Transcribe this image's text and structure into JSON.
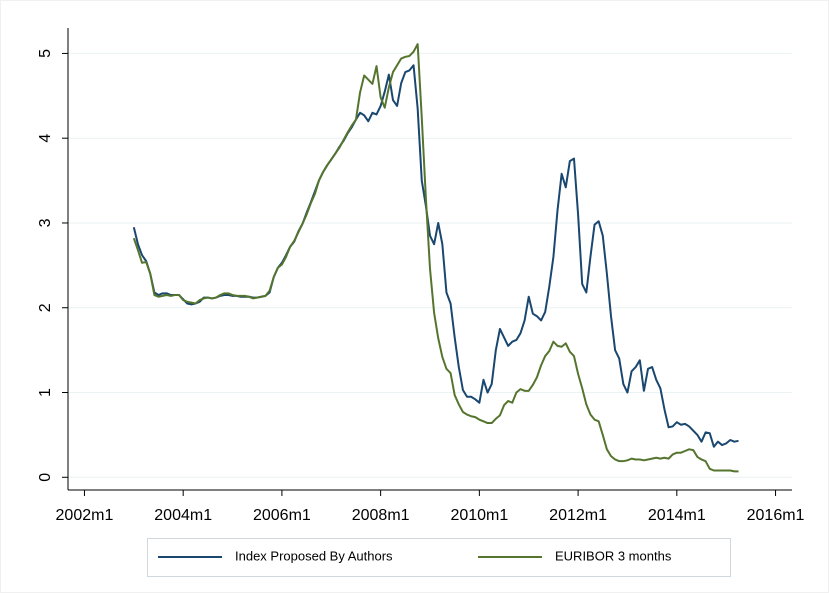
{
  "chart_data": {
    "type": "line",
    "x": [
      "2003m1",
      "2003m2",
      "2003m3",
      "2003m4",
      "2003m5",
      "2003m6",
      "2003m7",
      "2003m8",
      "2003m9",
      "2003m10",
      "2003m11",
      "2003m12",
      "2004m1",
      "2004m2",
      "2004m3",
      "2004m4",
      "2004m5",
      "2004m6",
      "2004m7",
      "2004m8",
      "2004m9",
      "2004m10",
      "2004m11",
      "2004m12",
      "2005m1",
      "2005m2",
      "2005m3",
      "2005m4",
      "2005m5",
      "2005m6",
      "2005m7",
      "2005m8",
      "2005m9",
      "2005m10",
      "2005m11",
      "2005m12",
      "2006m1",
      "2006m2",
      "2006m3",
      "2006m4",
      "2006m5",
      "2006m6",
      "2006m7",
      "2006m8",
      "2006m9",
      "2006m10",
      "2006m11",
      "2006m12",
      "2007m1",
      "2007m2",
      "2007m3",
      "2007m4",
      "2007m5",
      "2007m6",
      "2007m7",
      "2007m8",
      "2007m9",
      "2007m10",
      "2007m11",
      "2007m12",
      "2008m1",
      "2008m2",
      "2008m3",
      "2008m4",
      "2008m5",
      "2008m6",
      "2008m7",
      "2008m8",
      "2008m9",
      "2008m10",
      "2008m11",
      "2008m12",
      "2009m1",
      "2009m2",
      "2009m3",
      "2009m4",
      "2009m5",
      "2009m6",
      "2009m7",
      "2009m8",
      "2009m9",
      "2009m10",
      "2009m11",
      "2009m12",
      "2010m1",
      "2010m2",
      "2010m3",
      "2010m4",
      "2010m5",
      "2010m6",
      "2010m7",
      "2010m8",
      "2010m9",
      "2010m10",
      "2010m11",
      "2010m12",
      "2011m1",
      "2011m2",
      "2011m3",
      "2011m4",
      "2011m5",
      "2011m6",
      "2011m7",
      "2011m8",
      "2011m9",
      "2011m10",
      "2011m11",
      "2011m12",
      "2012m1",
      "2012m2",
      "2012m3",
      "2012m4",
      "2012m5",
      "2012m6",
      "2012m7",
      "2012m8",
      "2012m9",
      "2012m10",
      "2012m11",
      "2012m12",
      "2013m1",
      "2013m2",
      "2013m3",
      "2013m4",
      "2013m5",
      "2013m6",
      "2013m7",
      "2013m8",
      "2013m9",
      "2013m10",
      "2013m11",
      "2013m12",
      "2014m1",
      "2014m2",
      "2014m3",
      "2014m4",
      "2014m5",
      "2014m6",
      "2014m7",
      "2014m8",
      "2014m9",
      "2014m10",
      "2014m11",
      "2014m12",
      "2015m1",
      "2015m2",
      "2015m3",
      "2015m4"
    ],
    "series": [
      {
        "name": "Index Proposed By Authors",
        "color": "#1a476f",
        "values": [
          2.95,
          2.75,
          2.62,
          2.55,
          2.4,
          2.18,
          2.15,
          2.17,
          2.17,
          2.15,
          2.15,
          2.15,
          2.1,
          2.05,
          2.04,
          2.05,
          2.07,
          2.12,
          2.12,
          2.11,
          2.12,
          2.14,
          2.15,
          2.15,
          2.14,
          2.14,
          2.13,
          2.13,
          2.13,
          2.12,
          2.12,
          2.13,
          2.14,
          2.18,
          2.36,
          2.47,
          2.53,
          2.62,
          2.72,
          2.78,
          2.9,
          2.99,
          3.12,
          3.24,
          3.37,
          3.5,
          3.6,
          3.68,
          3.75,
          3.82,
          3.9,
          3.97,
          4.06,
          4.13,
          4.22,
          4.3,
          4.27,
          4.2,
          4.3,
          4.28,
          4.38,
          4.55,
          4.75,
          4.45,
          4.38,
          4.65,
          4.78,
          4.8,
          4.86,
          4.35,
          3.5,
          3.2,
          2.85,
          2.75,
          3.0,
          2.75,
          2.18,
          2.05,
          1.65,
          1.3,
          1.03,
          0.95,
          0.95,
          0.92,
          0.88,
          1.15,
          1.0,
          1.1,
          1.5,
          1.75,
          1.65,
          1.55,
          1.6,
          1.62,
          1.7,
          1.85,
          2.13,
          1.93,
          1.9,
          1.85,
          1.95,
          2.25,
          2.6,
          3.15,
          3.58,
          3.42,
          3.73,
          3.76,
          3.1,
          2.28,
          2.18,
          2.6,
          2.98,
          3.02,
          2.85,
          2.4,
          1.9,
          1.5,
          1.4,
          1.1,
          1.0,
          1.25,
          1.3,
          1.38,
          1.02,
          1.28,
          1.3,
          1.15,
          1.05,
          0.8,
          0.59,
          0.6,
          0.65,
          0.62,
          0.63,
          0.6,
          0.55,
          0.5,
          0.42,
          0.53,
          0.52,
          0.36,
          0.42,
          0.38,
          0.4,
          0.44,
          0.42,
          0.43
        ]
      },
      {
        "name": "EURIBOR 3 months",
        "color": "#55752f",
        "values": [
          2.82,
          2.68,
          2.53,
          2.54,
          2.4,
          2.15,
          2.13,
          2.14,
          2.15,
          2.14,
          2.15,
          2.15,
          2.09,
          2.07,
          2.06,
          2.05,
          2.09,
          2.11,
          2.12,
          2.11,
          2.12,
          2.15,
          2.17,
          2.17,
          2.15,
          2.14,
          2.14,
          2.14,
          2.13,
          2.11,
          2.12,
          2.13,
          2.14,
          2.2,
          2.36,
          2.47,
          2.51,
          2.6,
          2.72,
          2.79,
          2.89,
          2.99,
          3.1,
          3.23,
          3.34,
          3.5,
          3.6,
          3.68,
          3.75,
          3.82,
          3.89,
          3.98,
          4.07,
          4.15,
          4.22,
          4.54,
          4.74,
          4.69,
          4.64,
          4.85,
          4.48,
          4.36,
          4.6,
          4.78,
          4.86,
          4.94,
          4.96,
          4.97,
          5.02,
          5.11,
          4.24,
          3.29,
          2.46,
          1.94,
          1.64,
          1.42,
          1.28,
          1.23,
          0.97,
          0.86,
          0.77,
          0.74,
          0.72,
          0.71,
          0.68,
          0.66,
          0.64,
          0.64,
          0.69,
          0.73,
          0.85,
          0.9,
          0.88,
          1.0,
          1.04,
          1.02,
          1.02,
          1.09,
          1.18,
          1.32,
          1.43,
          1.49,
          1.6,
          1.55,
          1.54,
          1.58,
          1.48,
          1.43,
          1.22,
          1.05,
          0.86,
          0.74,
          0.68,
          0.66,
          0.5,
          0.33,
          0.25,
          0.21,
          0.19,
          0.19,
          0.2,
          0.22,
          0.21,
          0.21,
          0.2,
          0.21,
          0.22,
          0.23,
          0.22,
          0.23,
          0.22,
          0.27,
          0.29,
          0.29,
          0.31,
          0.33,
          0.32,
          0.24,
          0.21,
          0.19,
          0.1,
          0.08,
          0.08,
          0.08,
          0.08,
          0.08,
          0.07,
          0.07
        ]
      }
    ],
    "xlim": [
      "2001m9",
      "2016m5"
    ],
    "xticks": [
      "2002m1",
      "2004m1",
      "2006m1",
      "2008m1",
      "2010m1",
      "2012m1",
      "2014m1",
      "2016m1"
    ],
    "ylim": [
      -0.15,
      5.3
    ],
    "yticks": [
      0,
      1,
      2,
      3,
      4,
      5
    ],
    "grid": true
  }
}
